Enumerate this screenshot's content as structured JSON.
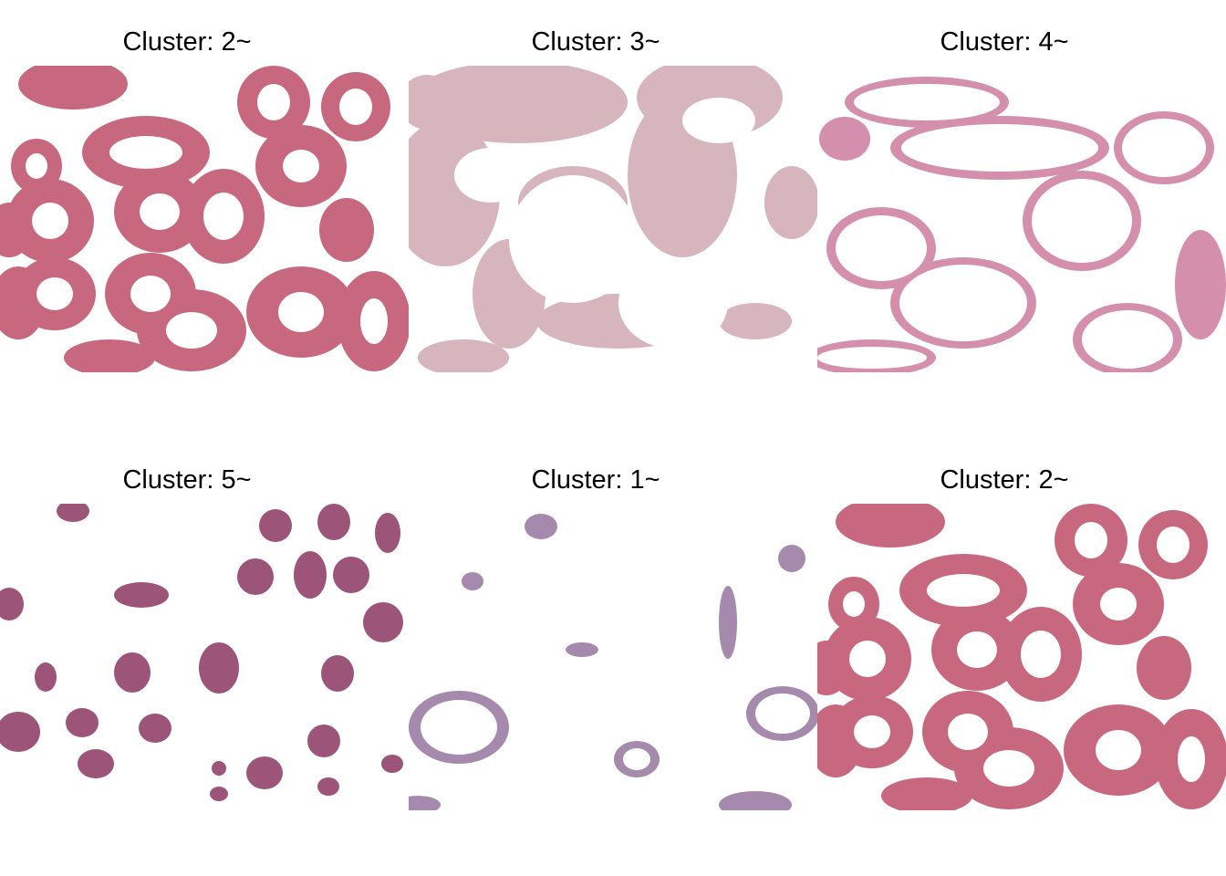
{
  "panels": [
    {
      "title": "Cluster: 2~",
      "color": "#c8687f",
      "pattern": "rings"
    },
    {
      "title": "Cluster: 3~",
      "color": "#d6b5bc",
      "pattern": "stroma"
    },
    {
      "title": "Cluster: 4~",
      "color": "#d48fac",
      "pattern": "outlines"
    },
    {
      "title": "Cluster: 5~",
      "color": "#9c5479",
      "pattern": "nuclei"
    },
    {
      "title": "Cluster: 1~",
      "color": "#a68aad",
      "pattern": "sparse"
    },
    {
      "title": "Cluster: 2~",
      "color": "#c8687f",
      "pattern": "rings"
    }
  ]
}
